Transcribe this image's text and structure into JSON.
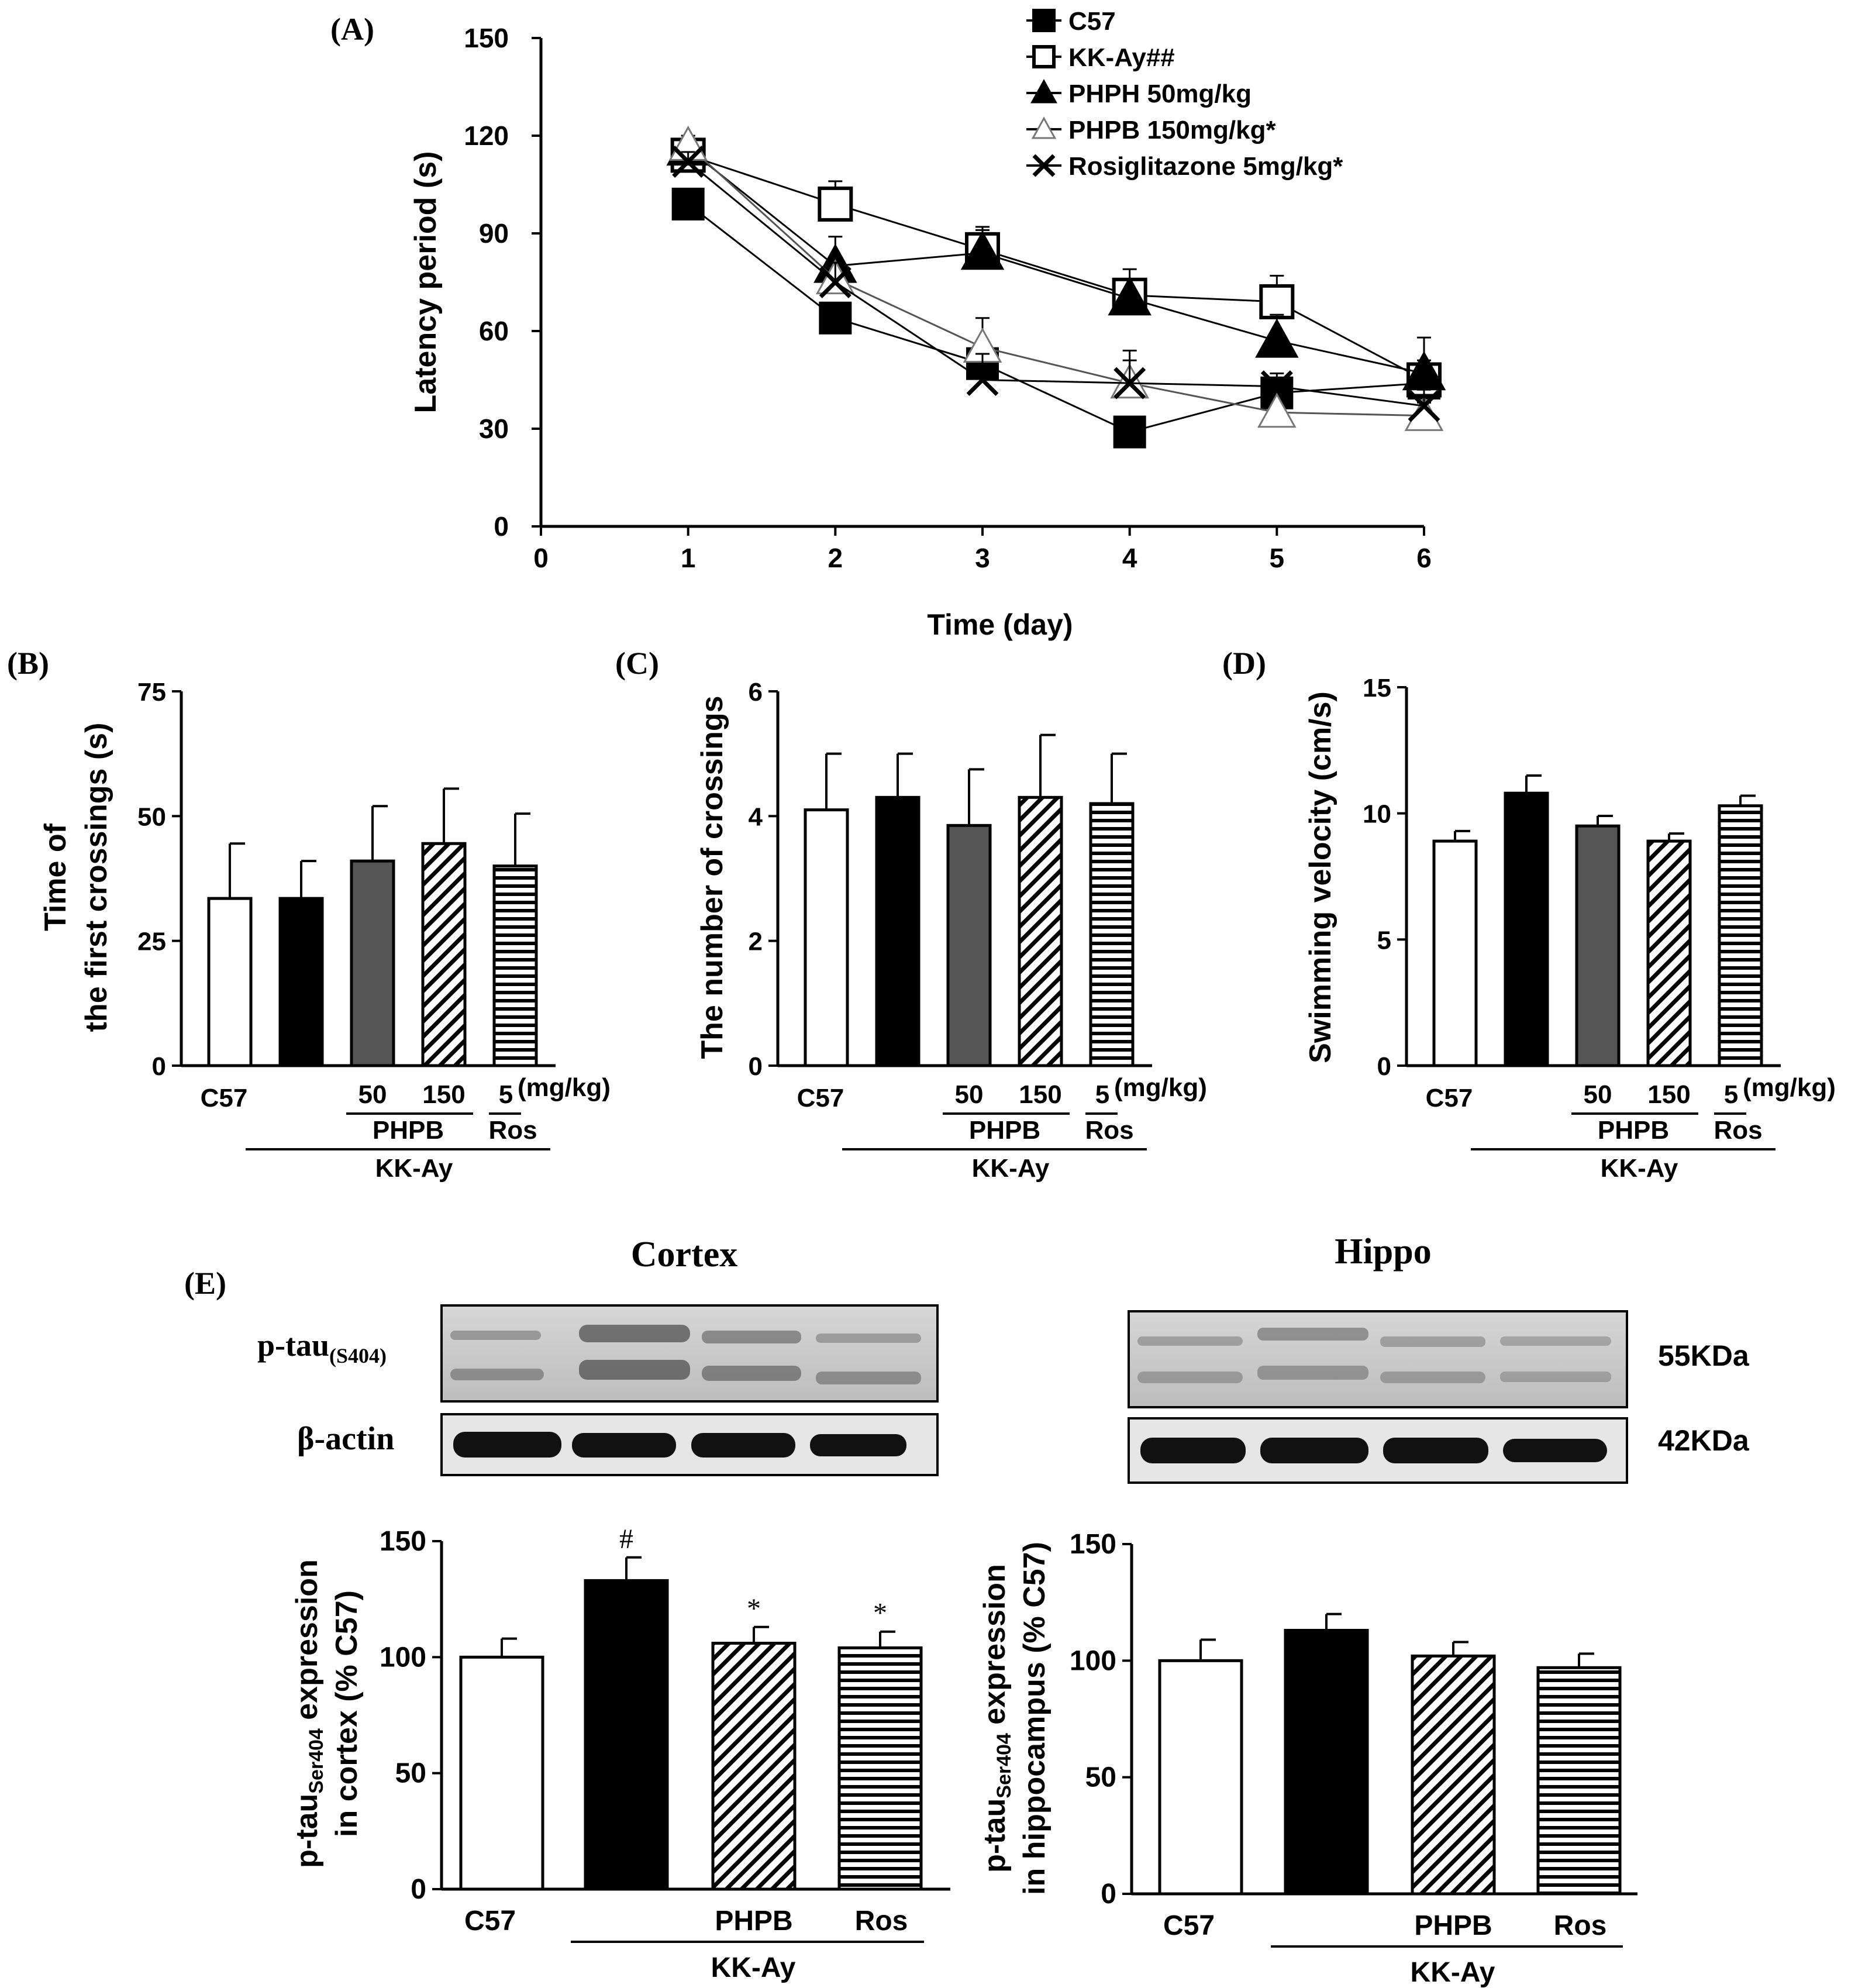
{
  "chart_data": [
    {
      "id": "A",
      "panel_label": "(A)",
      "type": "line",
      "xlabel": "Time (day)",
      "ylabel": "Latency period (s)",
      "xlim": [
        0,
        6
      ],
      "ylim": [
        0,
        150
      ],
      "xticks": [
        "0",
        "1",
        "2",
        "3",
        "4",
        "5",
        "6"
      ],
      "yticks": [
        "0",
        "30",
        "60",
        "90",
        "120",
        "150"
      ],
      "x": [
        1,
        2,
        3,
        4,
        5,
        6
      ],
      "legend_position": "top-right",
      "series": [
        {
          "name": "C57",
          "marker": "filled-square",
          "values": [
            99,
            64,
            50,
            29,
            41,
            44
          ],
          "errors": [
            3,
            3,
            4,
            4,
            3,
            6
          ]
        },
        {
          "name": "KK-Ay##",
          "marker": "open-square",
          "values": [
            114,
            99,
            85,
            71,
            69,
            45
          ],
          "errors": [
            3,
            7,
            7,
            8,
            8,
            6
          ]
        },
        {
          "name": "PHPH 50mg/kg",
          "marker": "filled-triangle",
          "values": [
            116,
            80,
            84,
            70,
            57,
            47
          ],
          "errors": [
            3,
            9,
            7,
            6,
            8,
            11
          ]
        },
        {
          "name": "PHPB 150mg/kg*",
          "marker": "open-triangle",
          "values": [
            117,
            76,
            55,
            44,
            35,
            34
          ],
          "errors": [
            3,
            6,
            9,
            7,
            4,
            4
          ]
        },
        {
          "name": "Rosiglitazone 5mg/kg*",
          "marker": "x",
          "values": [
            112,
            75,
            45,
            44,
            43,
            37
          ],
          "errors": [
            3,
            6,
            8,
            10,
            4,
            5
          ]
        }
      ]
    },
    {
      "id": "B",
      "panel_label": "(B)",
      "type": "bar",
      "ylabel_lines": [
        "Time of",
        "the first crossings (s)"
      ],
      "ylim": [
        0,
        75
      ],
      "yticks": [
        "0",
        "25",
        "50",
        "75"
      ],
      "categories": [
        "C57",
        "KK-Ay",
        "PHPB 50",
        "PHPB 150",
        "Ros 5"
      ],
      "values": [
        33.5,
        33.5,
        41,
        44.5,
        40
      ],
      "errors": [
        11,
        7.5,
        11,
        11,
        10.5
      ],
      "fills": [
        "open",
        "black",
        "gray",
        "diagonal",
        "horizontal"
      ],
      "x_group": {
        "c57": "C57",
        "dose_50": "50",
        "dose_150": "150",
        "dose_5": "5",
        "unit": "(mg/kg)",
        "phpb": "PHPB",
        "ros": "Ros",
        "kkay": "KK-Ay"
      }
    },
    {
      "id": "C",
      "panel_label": "(C)",
      "type": "bar",
      "ylabel": "The number of crossings",
      "ylim": [
        0,
        6
      ],
      "yticks": [
        "0",
        "2",
        "4",
        "6"
      ],
      "categories": [
        "C57",
        "KK-Ay",
        "PHPB 50",
        "PHPB 150",
        "Ros 5"
      ],
      "values": [
        4.1,
        4.3,
        3.85,
        4.3,
        4.2
      ],
      "errors": [
        0.9,
        0.7,
        0.9,
        1.0,
        0.8
      ],
      "fills": [
        "open",
        "black",
        "gray",
        "diagonal",
        "horizontal"
      ],
      "x_group": {
        "c57": "C57",
        "dose_50": "50",
        "dose_150": "150",
        "dose_5": "5",
        "unit": "(mg/kg)",
        "phpb": "PHPB",
        "ros": "Ros",
        "kkay": "KK-Ay"
      }
    },
    {
      "id": "D",
      "panel_label": "(D)",
      "type": "bar",
      "ylabel": "Swimming velocity (cm/s)",
      "ylim": [
        0,
        15
      ],
      "yticks": [
        "0",
        "5",
        "10",
        "15"
      ],
      "categories": [
        "C57",
        "KK-Ay",
        "PHPB 50",
        "PHPB 150",
        "Ros 5"
      ],
      "values": [
        8.9,
        10.8,
        9.5,
        8.9,
        10.3
      ],
      "errors": [
        0.4,
        0.7,
        0.4,
        0.3,
        0.4
      ],
      "fills": [
        "open",
        "black",
        "gray",
        "diagonal",
        "horizontal"
      ],
      "x_group": {
        "c57": "C57",
        "dose_50": "50",
        "dose_150": "150",
        "dose_5": "5",
        "unit": "(mg/kg)",
        "phpb": "PHPB",
        "ros": "Ros",
        "kkay": "KK-Ay"
      }
    },
    {
      "id": "E-cortex",
      "panel_label": "(E)",
      "type": "bar",
      "ylabel_prefix": "p-tau",
      "ylabel_sub": "Ser404",
      "ylabel_suffix": " expression",
      "ylabel_line2": "in cortex (% C57)",
      "ylim": [
        0,
        150
      ],
      "yticks": [
        "0",
        "50",
        "100",
        "150"
      ],
      "categories": [
        "C57",
        "KK-Ay",
        "PHPB",
        "Ros"
      ],
      "values": [
        100,
        133,
        106,
        104
      ],
      "errors": [
        8,
        10,
        7,
        7
      ],
      "fills": [
        "open",
        "black",
        "diagonal",
        "horizontal"
      ],
      "annotations": [
        "",
        "#",
        "*",
        "*"
      ],
      "x_group": {
        "c57": "C57",
        "phpb": "PHPB",
        "ros": "Ros",
        "kkay": "KK-Ay"
      }
    },
    {
      "id": "E-hippo",
      "type": "bar",
      "ylabel_prefix": "p-tau",
      "ylabel_sub": "Ser404",
      "ylabel_suffix": " expression",
      "ylabel_line2": "in hippocampus (% C57)",
      "ylim": [
        0,
        150
      ],
      "yticks": [
        "0",
        "50",
        "100",
        "150"
      ],
      "categories": [
        "C57",
        "KK-Ay",
        "PHPB",
        "Ros"
      ],
      "values": [
        100,
        113,
        102,
        97
      ],
      "errors": [
        9,
        7,
        6,
        6
      ],
      "fills": [
        "open",
        "black",
        "diagonal",
        "horizontal"
      ],
      "annotations": [
        "",
        "",
        "",
        ""
      ],
      "x_group": {
        "c57": "C57",
        "phpb": "PHPB",
        "ros": "Ros",
        "kkay": "KK-Ay"
      }
    }
  ],
  "blot": {
    "cortex_title": "Cortex",
    "hippo_title": "Hippo",
    "ptau_label": "p-tau",
    "ptau_sub": "(S404)",
    "actin_label": "β-actin",
    "ptau_kda": "55KDa",
    "actin_kda": "42KDa"
  }
}
